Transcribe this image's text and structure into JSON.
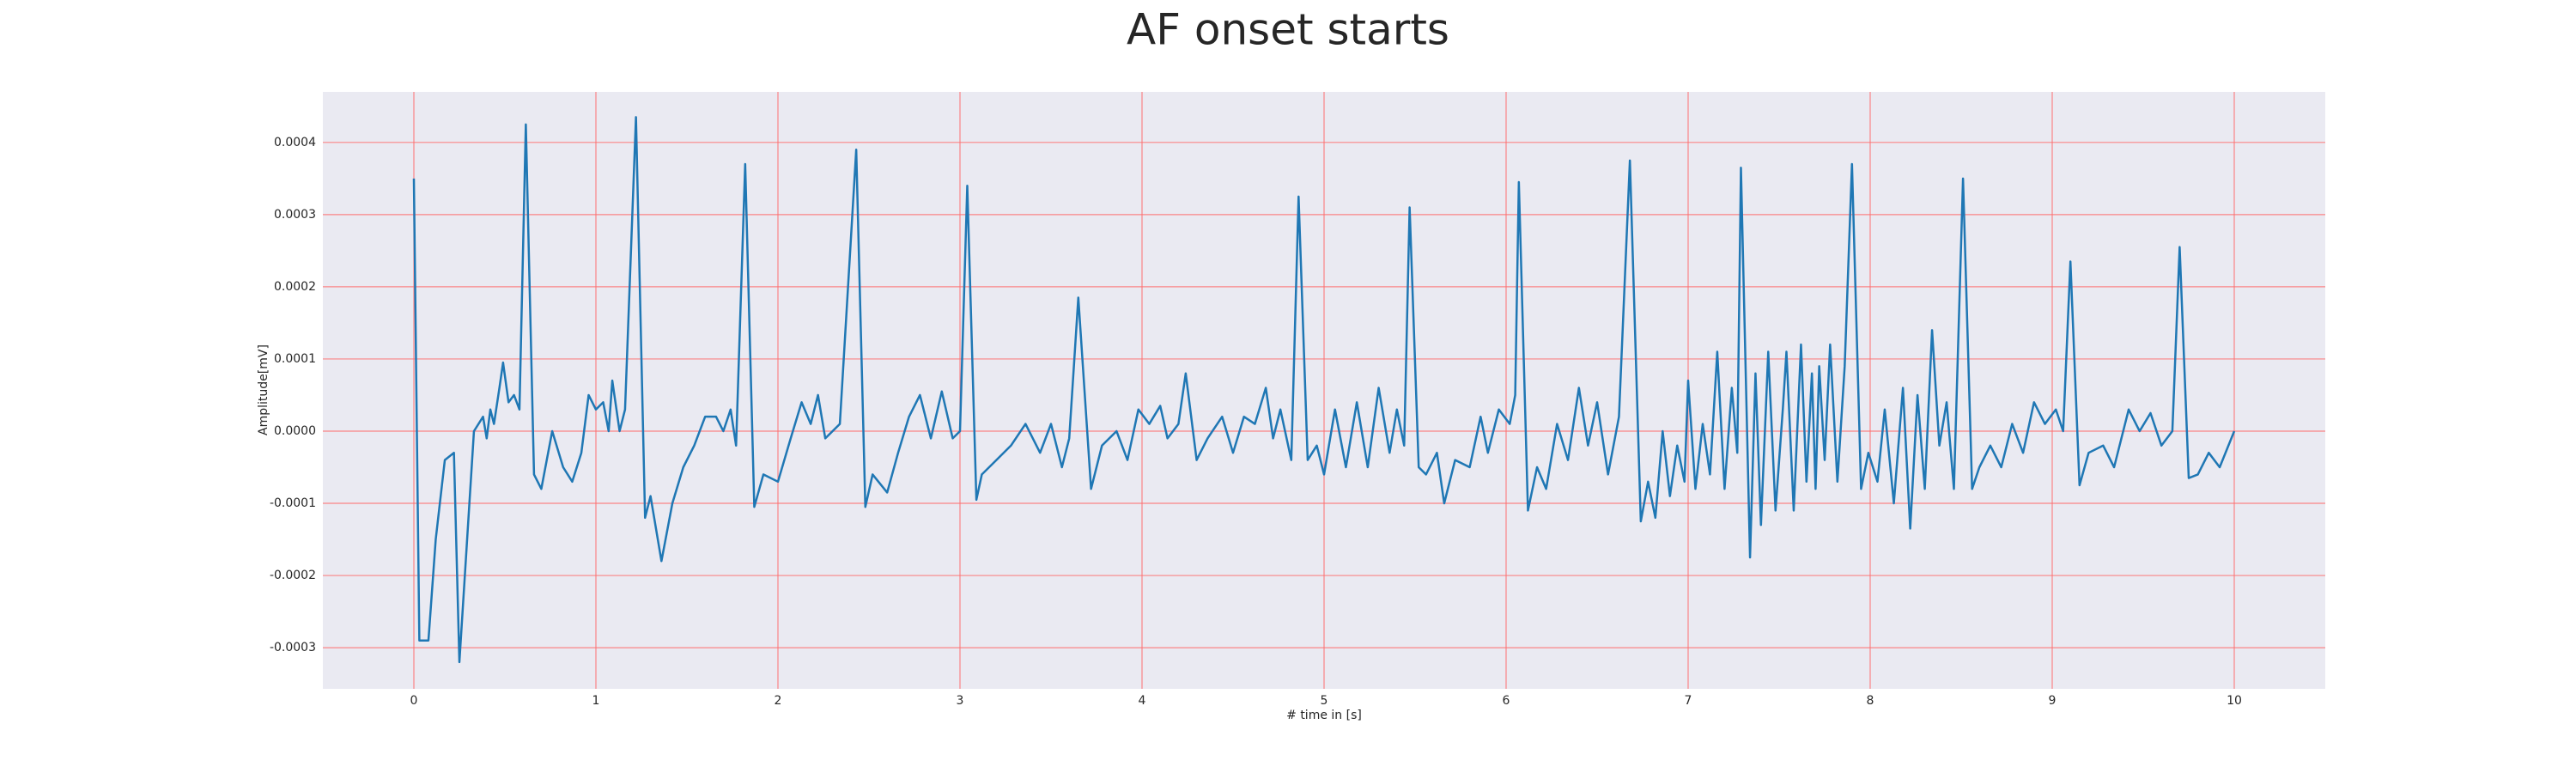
{
  "chart_data": {
    "type": "line",
    "title": "AF onset starts",
    "xlabel": "# time in [s]",
    "ylabel": "Amplitude[mV]",
    "color": "#1f77b4",
    "grid": true,
    "grid_color": "#ff6b6b",
    "background": "#eaeaf2",
    "xlim": [
      -0.5,
      10.5
    ],
    "ylim": [
      -0.000357,
      0.00047
    ],
    "xticks": [
      0,
      1,
      2,
      3,
      4,
      5,
      6,
      7,
      8,
      9,
      10
    ],
    "yticks": [
      -0.0003,
      -0.0002,
      -0.0001,
      {
        "value": 0,
        "label": "0.0000"
      },
      0.0001,
      0.0002,
      0.0003,
      0.0004
    ],
    "x": [
      0,
      0.03,
      0.08,
      0.12,
      0.17,
      0.22,
      0.25,
      0.33,
      0.38,
      0.4,
      0.42,
      0.44,
      0.47,
      0.49,
      0.52,
      0.55,
      0.58,
      0.615,
      0.66,
      0.7,
      0.76,
      0.82,
      0.87,
      0.92,
      0.96,
      1.0,
      1.04,
      1.07,
      1.09,
      1.13,
      1.16,
      1.22,
      1.27,
      1.3,
      1.36,
      1.42,
      1.48,
      1.54,
      1.6,
      1.66,
      1.7,
      1.74,
      1.77,
      1.82,
      1.87,
      1.92,
      2.0,
      2.07,
      2.13,
      2.18,
      2.22,
      2.26,
      2.34,
      2.43,
      2.48,
      2.52,
      2.6,
      2.66,
      2.72,
      2.78,
      2.84,
      2.9,
      2.96,
      3.0,
      3.04,
      3.09,
      3.12,
      3.2,
      3.28,
      3.36,
      3.44,
      3.5,
      3.56,
      3.6,
      3.65,
      3.72,
      3.78,
      3.86,
      3.92,
      3.98,
      4.04,
      4.1,
      4.14,
      4.2,
      4.24,
      4.3,
      4.36,
      4.44,
      4.5,
      4.56,
      4.62,
      4.68,
      4.72,
      4.76,
      4.82,
      4.86,
      4.91,
      4.96,
      5.0,
      5.06,
      5.12,
      5.18,
      5.24,
      5.3,
      5.36,
      5.4,
      5.44,
      5.47,
      5.52,
      5.56,
      5.62,
      5.66,
      5.72,
      5.8,
      5.86,
      5.9,
      5.96,
      6.02,
      6.05,
      6.07,
      6.12,
      6.17,
      6.22,
      6.28,
      6.34,
      6.4,
      6.45,
      6.5,
      6.56,
      6.62,
      6.68,
      6.74,
      6.78,
      6.82,
      6.86,
      6.9,
      6.94,
      6.98,
      7.0,
      7.04,
      7.08,
      7.12,
      7.16,
      7.2,
      7.24,
      7.27,
      7.29,
      7.34,
      7.37,
      7.4,
      7.44,
      7.48,
      7.52,
      7.54,
      7.58,
      7.62,
      7.65,
      7.68,
      7.7,
      7.72,
      7.75,
      7.78,
      7.82,
      7.86,
      7.9,
      7.95,
      7.99,
      8.04,
      8.08,
      8.13,
      8.18,
      8.22,
      8.26,
      8.3,
      8.34,
      8.38,
      8.42,
      8.46,
      8.51,
      8.56,
      8.6,
      8.66,
      8.72,
      8.78,
      8.84,
      8.9,
      8.96,
      9.02,
      9.06,
      9.1,
      9.15,
      9.2,
      9.28,
      9.34,
      9.42,
      9.48,
      9.54,
      9.6,
      9.66,
      9.7,
      9.75,
      9.8,
      9.86,
      9.92,
      10.0
    ],
    "values": [
      0.00035,
      -0.00029,
      -0.00029,
      -0.00015,
      -4e-05,
      -3e-05,
      -0.00032,
      0,
      2e-05,
      -1e-05,
      3e-05,
      1e-05,
      6e-05,
      9.5e-05,
      4e-05,
      5e-05,
      3e-05,
      0.000425,
      -6e-05,
      -8e-05,
      0,
      -5e-05,
      -7e-05,
      -3e-05,
      5e-05,
      3e-05,
      4e-05,
      0,
      7e-05,
      0,
      3e-05,
      0.000435,
      -0.00012,
      -9e-05,
      -0.00018,
      -0.0001,
      -5e-05,
      -2e-05,
      2e-05,
      2e-05,
      0,
      3e-05,
      -2e-05,
      0.00037,
      -0.000105,
      -6e-05,
      -7e-05,
      -1e-05,
      4e-05,
      1e-05,
      5e-05,
      -1e-05,
      1e-05,
      0.00039,
      -0.000105,
      -6e-05,
      -8.5e-05,
      -3e-05,
      2e-05,
      5e-05,
      -1e-05,
      5.5e-05,
      -1e-05,
      0,
      0.00034,
      -9.5e-05,
      -6e-05,
      -4e-05,
      -2e-05,
      1e-05,
      -3e-05,
      1e-05,
      -5e-05,
      -1e-05,
      0.000185,
      -8e-05,
      -2e-05,
      0,
      -4e-05,
      3e-05,
      1e-05,
      3.5e-05,
      -1e-05,
      1e-05,
      8e-05,
      -4e-05,
      -1e-05,
      2e-05,
      -3e-05,
      2e-05,
      1e-05,
      6e-05,
      -1e-05,
      3e-05,
      -4e-05,
      0.000325,
      -4e-05,
      -2e-05,
      -6e-05,
      3e-05,
      -5e-05,
      4e-05,
      -5e-05,
      6e-05,
      -3e-05,
      3e-05,
      -2e-05,
      0.00031,
      -5e-05,
      -6e-05,
      -3e-05,
      -0.0001,
      -4e-05,
      -5e-05,
      2e-05,
      -3e-05,
      3e-05,
      1e-05,
      5e-05,
      0.000345,
      -0.00011,
      -5e-05,
      -8e-05,
      1e-05,
      -4e-05,
      6e-05,
      -2e-05,
      4e-05,
      -6e-05,
      2e-05,
      0.000375,
      -0.000125,
      -7e-05,
      -0.00012,
      0,
      -9e-05,
      -2e-05,
      -7e-05,
      7e-05,
      -8e-05,
      1e-05,
      -6e-05,
      0.00011,
      -8e-05,
      6e-05,
      -3e-05,
      0.000365,
      -0.000175,
      8e-05,
      -0.00013,
      0.00011,
      -0.00011,
      3e-05,
      0.00011,
      -0.00011,
      0.00012,
      -7e-05,
      8e-05,
      -8e-05,
      9e-05,
      -4e-05,
      0.00012,
      -7e-05,
      9e-05,
      0.00037,
      -8e-05,
      -3e-05,
      -7e-05,
      3e-05,
      -0.0001,
      6e-05,
      -0.000135,
      5e-05,
      -8e-05,
      0.00014,
      -2e-05,
      4e-05,
      -8e-05,
      0.00035,
      -8e-05,
      -5e-05,
      -2e-05,
      -5e-05,
      1e-05,
      -3e-05,
      4e-05,
      1e-05,
      3e-05,
      0,
      0.000235,
      -7.5e-05,
      -3e-05,
      -2e-05,
      -5e-05,
      3e-05,
      0,
      2.5e-05,
      -2e-05,
      0,
      0.000255,
      -6.5e-05,
      -6e-05,
      -3e-05,
      -5e-05,
      0
    ]
  }
}
